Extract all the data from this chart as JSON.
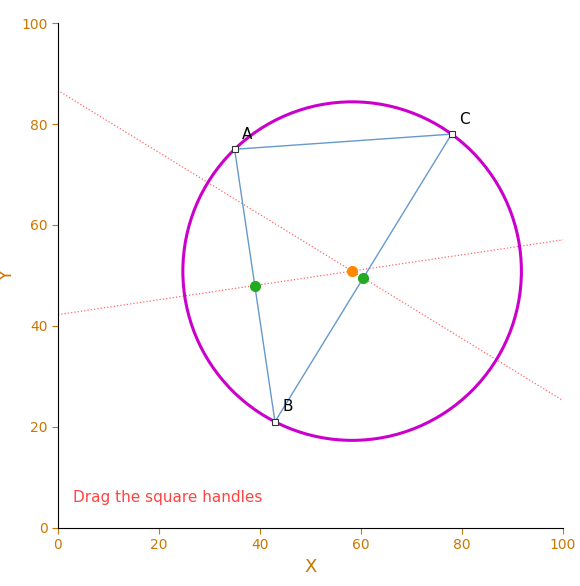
{
  "points": {
    "A": [
      35,
      75
    ],
    "B": [
      43,
      21
    ],
    "C": [
      78,
      78
    ]
  },
  "circle_color": "#CC00CC",
  "circle_linewidth": 2.2,
  "line_color": "#6699CC",
  "line_linewidth": 1.0,
  "bisector_color": "#FF6666",
  "bisector_linewidth": 0.9,
  "midpoint_color": "#22AA22",
  "midpoint_size": 7,
  "circumcenter_color": "#FF8800",
  "circumcenter_size": 7,
  "handle_color": "white",
  "handle_edgecolor": "#333333",
  "handle_size": 4,
  "label_fontsize": 11,
  "tick_color": "#CC7700",
  "axis_label_color": "#CC7700",
  "axis_label_fontsize": 13,
  "annotation_text": "Drag the square handles",
  "annotation_color": "#FF4444",
  "annotation_fontsize": 11,
  "xlim": [
    0,
    100
  ],
  "ylim": [
    0,
    100
  ],
  "xlabel": "X",
  "ylabel": "Y",
  "background_color": "#FFFFFF",
  "figsize": [
    5.8,
    5.86
  ],
  "dpi": 100
}
